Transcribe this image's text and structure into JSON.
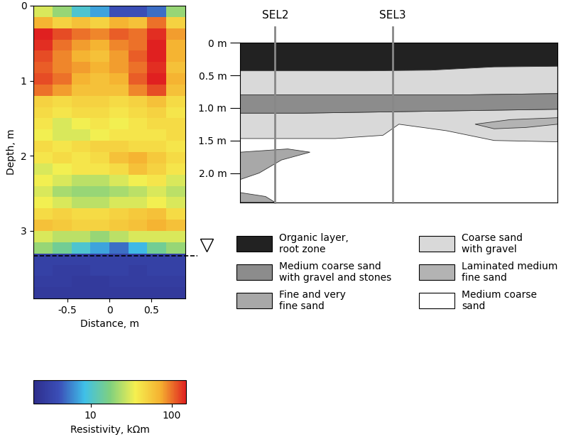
{
  "chart_data": {
    "type": "heatmap",
    "x_label": "Distance, m",
    "y_label": "Depth, m",
    "x_edges": [
      -0.9,
      -0.675,
      -0.45,
      -0.225,
      0,
      0.225,
      0.45,
      0.675,
      0.9
    ],
    "depth_edges": [
      0,
      0.15,
      0.3,
      0.45,
      0.6,
      0.75,
      0.9,
      1.05,
      1.2,
      1.35,
      1.5,
      1.65,
      1.8,
      1.95,
      2.1,
      2.25,
      2.4,
      2.55,
      2.7,
      2.85,
      3.0,
      3.15,
      3.3,
      3.45,
      3.6,
      3.75,
      3.9
    ],
    "cells": [
      [
        30,
        20,
        10,
        7,
        4,
        4,
        5,
        20
      ],
      [
        70,
        50,
        60,
        50,
        70,
        60,
        100,
        50
      ],
      [
        150,
        120,
        100,
        90,
        110,
        100,
        140,
        80
      ],
      [
        140,
        100,
        80,
        70,
        90,
        100,
        150,
        70
      ],
      [
        120,
        90,
        70,
        60,
        80,
        110,
        150,
        70
      ],
      [
        110,
        90,
        80,
        70,
        80,
        100,
        140,
        60
      ],
      [
        120,
        100,
        70,
        60,
        70,
        110,
        150,
        70
      ],
      [
        100,
        80,
        60,
        60,
        60,
        90,
        120,
        60
      ],
      [
        50,
        45,
        50,
        50,
        45,
        50,
        60,
        45
      ],
      [
        45,
        40,
        45,
        45,
        40,
        45,
        50,
        40
      ],
      [
        40,
        30,
        35,
        40,
        35,
        40,
        45,
        45
      ],
      [
        35,
        30,
        30,
        35,
        40,
        40,
        40,
        45
      ],
      [
        45,
        40,
        45,
        50,
        50,
        45,
        45,
        40
      ],
      [
        40,
        45,
        40,
        45,
        60,
        70,
        55,
        45
      ],
      [
        30,
        35,
        40,
        40,
        45,
        60,
        50,
        40
      ],
      [
        35,
        30,
        25,
        25,
        30,
        35,
        40,
        30
      ],
      [
        30,
        22,
        20,
        20,
        22,
        25,
        30,
        25
      ],
      [
        35,
        30,
        25,
        25,
        30,
        30,
        35,
        30
      ],
      [
        45,
        50,
        45,
        45,
        50,
        55,
        60,
        45
      ],
      [
        60,
        55,
        50,
        50,
        55,
        60,
        70,
        60
      ],
      [
        30,
        25,
        25,
        20,
        25,
        30,
        30,
        30
      ],
      [
        20,
        15,
        10,
        7,
        5,
        8,
        15,
        20
      ],
      [
        3,
        3,
        3,
        3,
        3,
        3,
        3,
        3
      ],
      [
        3,
        2.8,
        2.8,
        3,
        3,
        2.8,
        3,
        3
      ],
      [
        2.8,
        2.8,
        2.6,
        2.6,
        2.8,
        2.8,
        2.8,
        2.8
      ],
      [
        2.6,
        2.6,
        2.6,
        2.6,
        2.6,
        2.6,
        2.6,
        2.6
      ]
    ],
    "xlim": [
      -0.9,
      0.9
    ],
    "xticks": [
      -0.5,
      0,
      0.5
    ],
    "ylim": [
      3.9,
      0
    ],
    "yticks": [
      0,
      1,
      2,
      3
    ],
    "colorbar": {
      "label": "Resistivity, kΩm",
      "range": [
        2,
        150
      ],
      "ticks": [
        10,
        100
      ],
      "log": true
    },
    "water_table": {
      "depth": 3.33
    }
  },
  "diagram": {
    "profile": {
      "xlim": [
        0,
        10
      ],
      "ylim": [
        2.45,
        0
      ],
      "tick_labels": "y",
      "yticks": [
        {
          "value": 0,
          "label": "0 m"
        },
        {
          "value": 0.5,
          "label": "0.5 m"
        },
        {
          "value": 1.0,
          "label": "1.0 m"
        },
        {
          "value": 1.5,
          "label": "1.5 m"
        },
        {
          "value": 2.0,
          "label": "2.0 m"
        }
      ],
      "sections": [
        {
          "label": "SEL2",
          "x": 1.1
        },
        {
          "label": "SEL3",
          "x": 4.8
        }
      ]
    },
    "legend": [
      {
        "label": "Organic layer,\nroot zone",
        "color": "#222222",
        "polygons": [
          [
            [
              0,
              0
            ],
            [
              10,
              0
            ],
            [
              10,
              0.36
            ],
            [
              8,
              0.37
            ],
            [
              6,
              0.42
            ],
            [
              4,
              0.43
            ],
            [
              0,
              0.43
            ]
          ]
        ]
      },
      {
        "label": "Medium coarse sand\nwith gravel and stones",
        "color": "#8c8c8c",
        "polygons": [
          [
            [
              0,
              0.8
            ],
            [
              4,
              0.8
            ],
            [
              7,
              0.8
            ],
            [
              10,
              0.78
            ],
            [
              10,
              1.02
            ],
            [
              6,
              1.05
            ],
            [
              2,
              1.08
            ],
            [
              0,
              1.08
            ]
          ]
        ]
      },
      {
        "label": "Fine and very\nfine sand",
        "color": "#a8a8a8",
        "polygons": [
          [
            [
              0,
              1.68
            ],
            [
              1.5,
              1.63
            ],
            [
              2.2,
              1.68
            ],
            [
              1.3,
              1.8
            ],
            [
              0.6,
              2.0
            ],
            [
              0,
              2.1
            ]
          ],
          [
            [
              0,
              2.3
            ],
            [
              0.8,
              2.36
            ],
            [
              1.1,
              2.45
            ],
            [
              0,
              2.45
            ]
          ]
        ]
      },
      {
        "label": "Coarse sand\nwith gravel",
        "color": "#d9d9d9",
        "polygons": [
          [
            [
              0,
              0.43
            ],
            [
              4,
              0.43
            ],
            [
              6,
              0.42
            ],
            [
              8,
              0.37
            ],
            [
              10,
              0.36
            ],
            [
              10,
              0.78
            ],
            [
              7,
              0.8
            ],
            [
              4,
              0.8
            ],
            [
              0,
              0.8
            ]
          ],
          [
            [
              0,
              1.08
            ],
            [
              2,
              1.08
            ],
            [
              6,
              1.05
            ],
            [
              10,
              1.02
            ],
            [
              10,
              1.52
            ],
            [
              8,
              1.5
            ],
            [
              6.5,
              1.35
            ],
            [
              5,
              1.25
            ],
            [
              4.5,
              1.42
            ],
            [
              3,
              1.47
            ],
            [
              0,
              1.47
            ]
          ]
        ]
      },
      {
        "label": "Laminated medium\nfine sand",
        "color": "#b3b3b3",
        "polygons": [
          [
            [
              7.4,
              1.25
            ],
            [
              8.5,
              1.18
            ],
            [
              10,
              1.15
            ],
            [
              10,
              1.25
            ],
            [
              9,
              1.3
            ],
            [
              8,
              1.32
            ]
          ]
        ]
      },
      {
        "label": "Medium coarse\nsand",
        "color": "#ffffff",
        "polygons": [
          [
            [
              0,
              0
            ],
            [
              10,
              0
            ],
            [
              10,
              2.45
            ],
            [
              0,
              2.45
            ]
          ]
        ]
      }
    ]
  }
}
